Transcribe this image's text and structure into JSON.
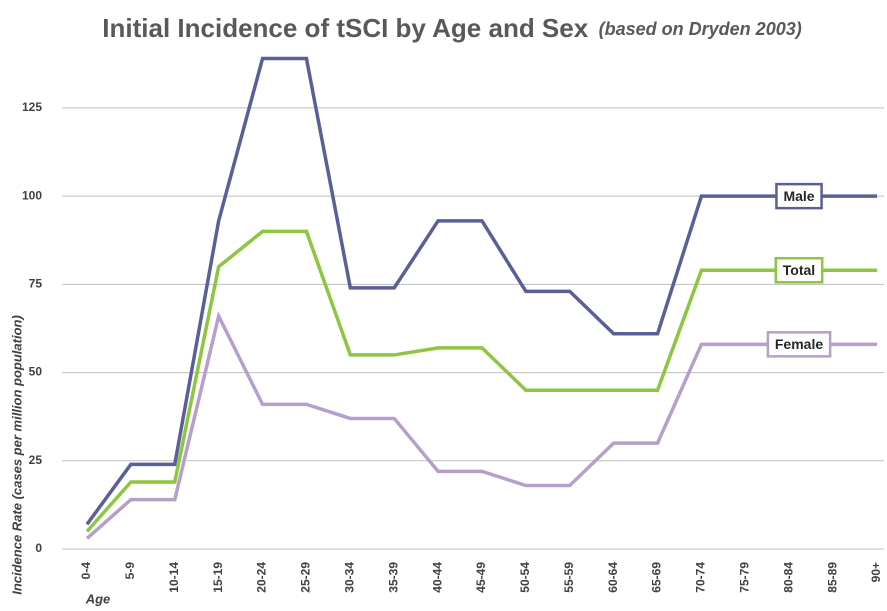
{
  "chart_data": {
    "type": "line",
    "title": "Initial Incidence of tSCI by Age and Sex",
    "subtitle": "(based on Dryden 2003)",
    "x_label": "Age",
    "y_label": "Incidence Rate (cases per million population)",
    "categories": [
      "0-4",
      "5-9",
      "10-14",
      "15-19",
      "20-24",
      "25-29",
      "30-34",
      "35-39",
      "40-44",
      "45-49",
      "50-54",
      "55-59",
      "60-64",
      "65-69",
      "70-74",
      "75-79",
      "80-84",
      "85-89",
      "90+"
    ],
    "series": [
      {
        "name": "Male",
        "color": "#5b5f97",
        "values": [
          7,
          24,
          24,
          93,
          139,
          139,
          74,
          74,
          93,
          93,
          73,
          73,
          61,
          61,
          100,
          100,
          100,
          100,
          100
        ]
      },
      {
        "name": "Total",
        "color": "#8dc63f",
        "values": [
          5,
          19,
          19,
          80,
          90,
          90,
          55,
          55,
          57,
          57,
          45,
          45,
          45,
          45,
          79,
          79,
          79,
          79,
          79
        ]
      },
      {
        "name": "Female",
        "color": "#b79fcb",
        "values": [
          3,
          14,
          14,
          66,
          41,
          41,
          37,
          37,
          22,
          22,
          18,
          18,
          30,
          30,
          58,
          58,
          58,
          58,
          58
        ]
      }
    ],
    "ylim": [
      0,
      140
    ],
    "yticks": [
      0,
      25,
      50,
      75,
      100,
      125
    ],
    "grid": true
  }
}
